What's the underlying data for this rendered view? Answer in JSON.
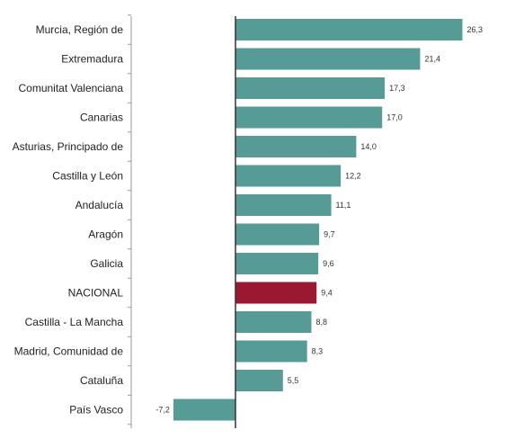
{
  "chart_data": {
    "type": "bar",
    "orientation": "horizontal",
    "categories": [
      "Murcia, Región de",
      "Extremadura",
      "Comunitat Valenciana",
      "Canarias",
      "Asturias, Principado de",
      "Castilla y León",
      "Andalucía",
      "Aragón",
      "Galicia",
      "NACIONAL",
      "Castilla - La Mancha",
      "Madrid, Comunidad de",
      "Cataluña",
      "País Vasco"
    ],
    "values": [
      26.3,
      21.4,
      17.3,
      17.0,
      14.0,
      12.2,
      11.1,
      9.7,
      9.6,
      9.4,
      8.8,
      8.3,
      5.5,
      -7.2
    ],
    "value_labels": [
      "26,3",
      "21,4",
      "17,3",
      "17,0",
      "14,0",
      "12,2",
      "11,1",
      "9,7",
      "9,6",
      "9,4",
      "8,8",
      "8,3",
      "5,5",
      "-7,2"
    ],
    "highlight_category": "NACIONAL",
    "colors": {
      "bar": "#569b95",
      "highlight": "#9b1832",
      "bar_edge": "#3f7d78",
      "axis": "#333333",
      "tick": "#999999",
      "label_text": "#222222",
      "value_text": "#333333"
    },
    "xlim": [
      -12,
      26.3
    ],
    "legend": "none",
    "grid": false
  }
}
